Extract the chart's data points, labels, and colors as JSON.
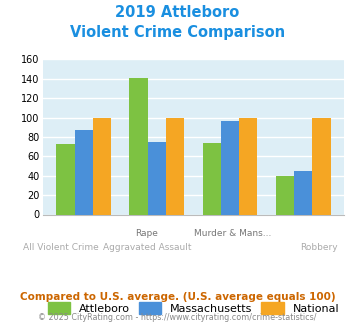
{
  "title_line1": "2019 Attleboro",
  "title_line2": "Violent Crime Comparison",
  "title_color": "#1a8fe0",
  "cat_labels_top": [
    "",
    "Rape",
    "Murder & Mans...",
    ""
  ],
  "cat_labels_bottom": [
    "All Violent Crime",
    "Aggravated Assault",
    "",
    "Robbery"
  ],
  "attleboro": [
    73,
    141,
    74,
    40
  ],
  "massachusetts": [
    87,
    75,
    96,
    45
  ],
  "national": [
    100,
    100,
    100,
    100
  ],
  "attleboro_color": "#7dc242",
  "massachusetts_color": "#4a90d9",
  "national_color": "#f5a623",
  "ylim": [
    0,
    160
  ],
  "yticks": [
    0,
    20,
    40,
    60,
    80,
    100,
    120,
    140,
    160
  ],
  "plot_bg": "#ddeef6",
  "grid_color": "#ffffff",
  "legend_labels": [
    "Attleboro",
    "Massachusetts",
    "National"
  ],
  "footnote1": "Compared to U.S. average. (U.S. average equals 100)",
  "footnote2": "© 2025 CityRating.com - https://www.cityrating.com/crime-statistics/",
  "footnote1_color": "#cc6600",
  "footnote2_color": "#888888"
}
